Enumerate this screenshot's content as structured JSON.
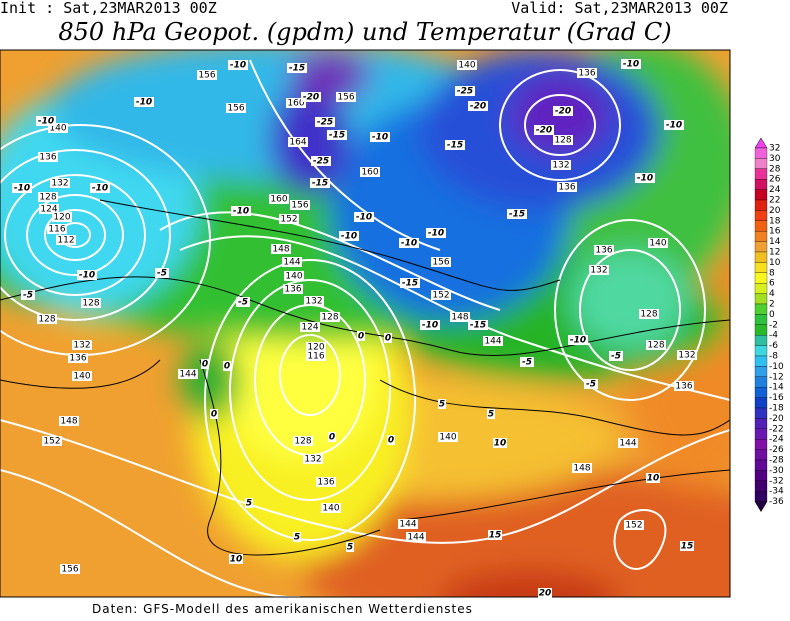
{
  "header": {
    "init": "Init : Sat,23MAR2013 00Z",
    "valid": "Valid: Sat,23MAR2013 00Z",
    "title": "850 hPa Geopot. (gpdm) und Temperatur (Grad C)"
  },
  "footer": "Daten: GFS-Modell des amerikanischen Wetterdienstes",
  "colorbar": {
    "labels": [
      "32",
      "30",
      "28",
      "26",
      "24",
      "22",
      "20",
      "18",
      "16",
      "14",
      "12",
      "10",
      "8",
      "6",
      "4",
      "2",
      "0",
      "-2",
      "-4",
      "-6",
      "-8",
      "-10",
      "-12",
      "-14",
      "-16",
      "-18",
      "-20",
      "-22",
      "-24",
      "-26",
      "-28",
      "-30",
      "-32",
      "-34",
      "-36"
    ]
  },
  "map": {
    "geopotential_labels": [
      "156",
      "156",
      "160",
      "156",
      "164",
      "160",
      "160",
      "156",
      "152",
      "140",
      "136",
      "128",
      "132",
      "136",
      "140",
      "136",
      "132",
      "128",
      "124",
      "120",
      "116",
      "112",
      "128",
      "128",
      "132",
      "136",
      "140",
      "144",
      "148",
      "152",
      "148",
      "144",
      "140",
      "136",
      "132",
      "124",
      "128",
      "120",
      "116",
      "128",
      "132",
      "136",
      "140",
      "144",
      "144",
      "140",
      "148",
      "152",
      "156",
      "156",
      "152",
      "148",
      "144",
      "136",
      "132",
      "128",
      "128",
      "132",
      "136",
      "140",
      "144"
    ],
    "temperature_labels": [
      "-10",
      "-15",
      "-20",
      "-25",
      "-15",
      "-25",
      "-15",
      "-10",
      "-10",
      "-10",
      "-10",
      "-10",
      "-10",
      "-10",
      "-10",
      "-15",
      "-25",
      "-20",
      "-20",
      "-20",
      "-10",
      "-10",
      "-10",
      "-15",
      "-10",
      "-10",
      "-15",
      "-10",
      "-15",
      "-10",
      "-5",
      "-5",
      "-5",
      "-10",
      "-5",
      "-5",
      "-5",
      "0",
      "0",
      "0",
      "0",
      "0",
      "5",
      "5",
      "10",
      "0",
      "5",
      "5",
      "5",
      "10",
      "15",
      "15",
      "10",
      "20",
      "0"
    ]
  }
}
